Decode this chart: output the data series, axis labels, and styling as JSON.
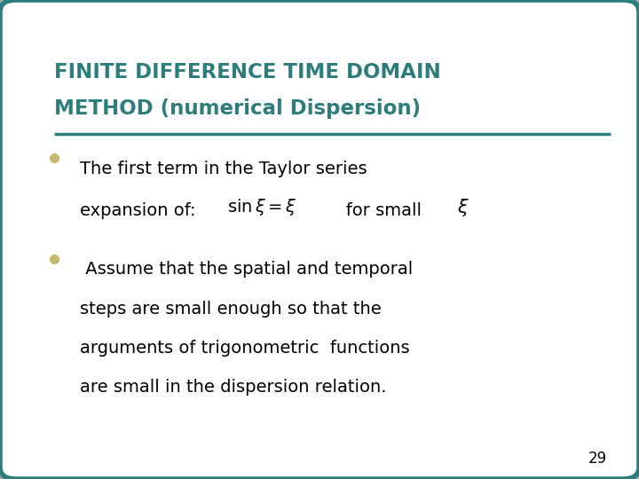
{
  "title_line1": "FINITE DIFFERENCE TIME DOMAIN",
  "title_line2": "METHOD (numerical Dispersion)",
  "title_color": "#2E7D7D",
  "background_color": "#FFFFFF",
  "border_color": "#2E7D7D",
  "bullet_color": "#C8B870",
  "bullet1_line1": "The first term in the Taylor series",
  "bullet1_line2_pre": "expansion of:  ",
  "bullet1_line2_math": "$\\sin\\xi = \\xi$",
  "bullet1_line2_post": "   for small  ",
  "bullet1_line2_xi": "$\\xi$",
  "bullet2_lines": [
    " Assume that the spatial and temporal",
    "steps are small enough so that the",
    "arguments of trigonometric  functions",
    "are small in the dispersion relation."
  ],
  "page_number": "29",
  "text_color": "#000000",
  "separator_color": "#2E7D7D",
  "fig_bg": "#AAAAAA"
}
